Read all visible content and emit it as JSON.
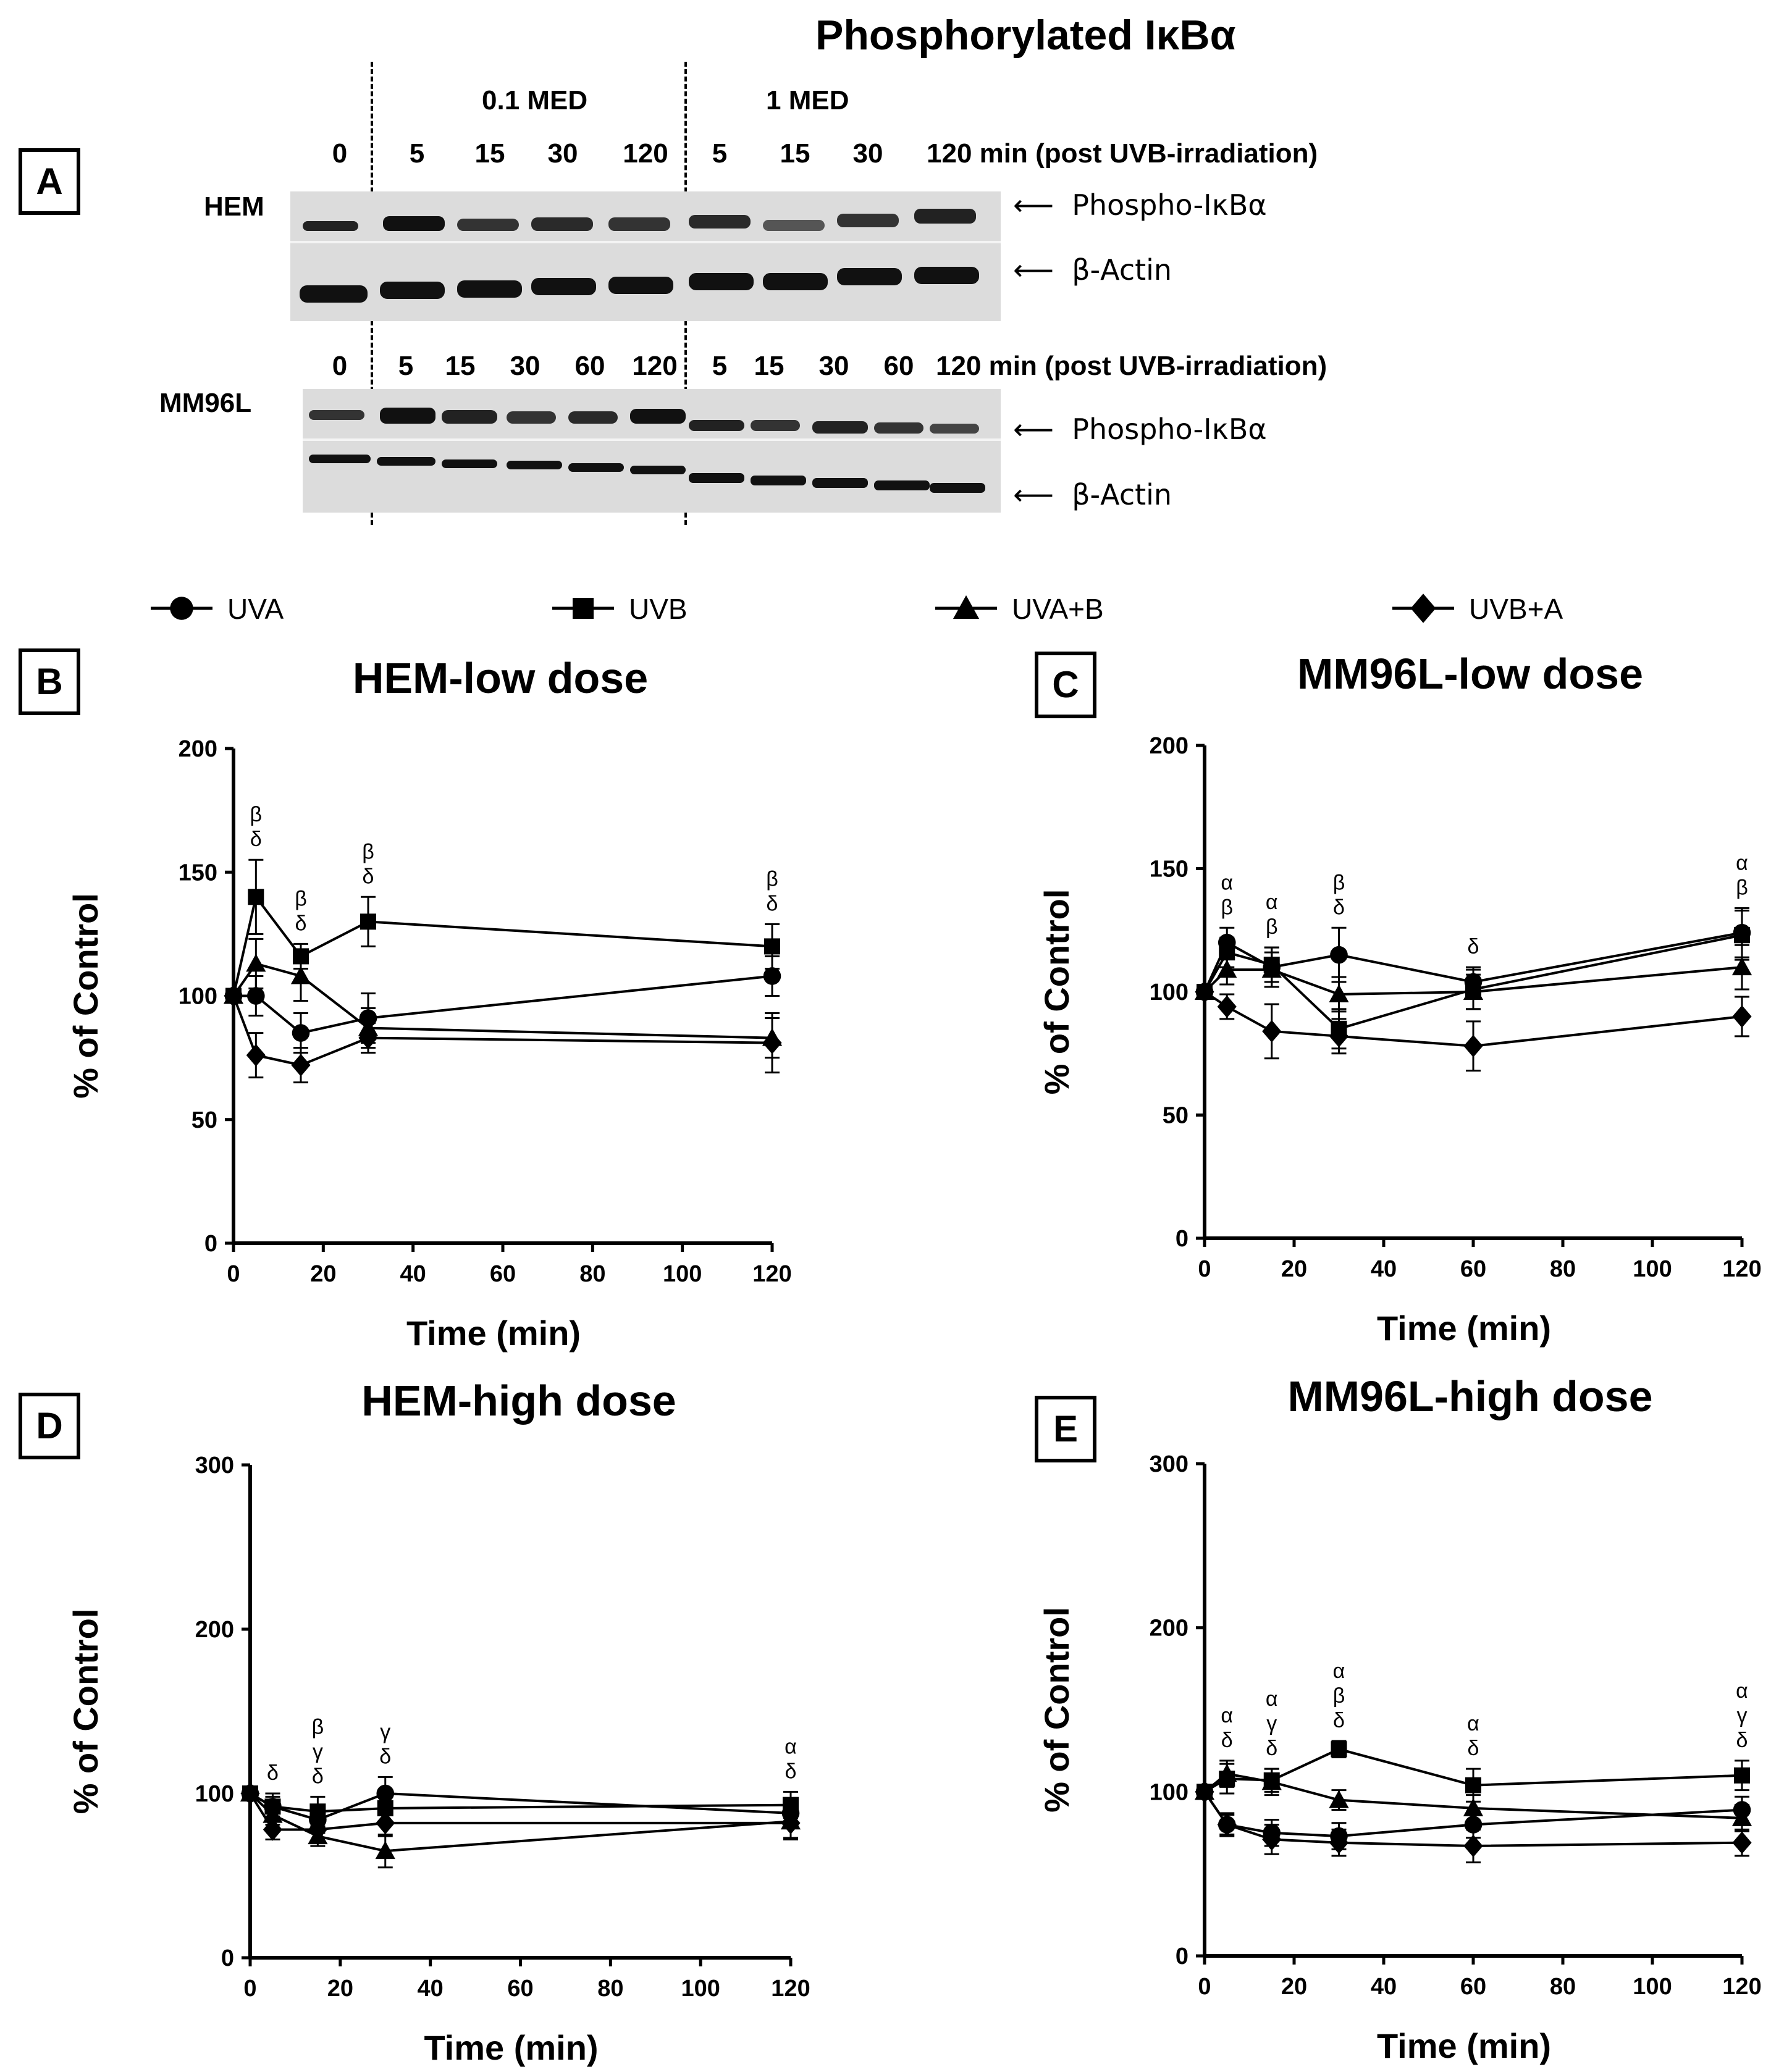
{
  "panel_a": {
    "letter": "A",
    "title": "Phosphorylated IκBα",
    "dose_low": "0.1 MED",
    "dose_high": "1 MED",
    "hem": {
      "cell_label": "HEM",
      "lanes": [
        "0",
        "5",
        "15",
        "30",
        "120",
        "5",
        "15",
        "30"
      ],
      "lanes_suffix": "120 min (post UVB-irradiation)"
    },
    "mm96l": {
      "cell_label": "MM96L",
      "lanes": [
        "0",
        "5",
        "15",
        "30",
        "60",
        "120",
        "5",
        "15",
        "30",
        "60"
      ],
      "lanes_suffix": "120 min (post UVB-irradiation)"
    },
    "band_phospho": "Phospho-IκBα",
    "band_actin": "β-Actin",
    "arrow": "⟵"
  },
  "legend": [
    {
      "name": "UVA",
      "marker": "circle"
    },
    {
      "name": "UVB",
      "marker": "square"
    },
    {
      "name": "UVA+B",
      "marker": "triangle"
    },
    {
      "name": "UVB+A",
      "marker": "diamond"
    }
  ],
  "chart_data": [
    {
      "id": "B",
      "type": "line",
      "title": "HEM-low dose",
      "xlabel": "Time (min)",
      "ylabel": "% of Control",
      "xlim": [
        0,
        120
      ],
      "ylim": [
        0,
        200
      ],
      "xticks": [
        0,
        20,
        40,
        60,
        80,
        100,
        120
      ],
      "yticks": [
        0,
        50,
        100,
        150,
        200
      ],
      "series": [
        {
          "name": "UVA",
          "x": [
            0,
            5,
            15,
            30,
            120
          ],
          "y": [
            100,
            100,
            85,
            91,
            108
          ],
          "err": [
            0,
            8,
            8,
            10,
            8
          ]
        },
        {
          "name": "UVB",
          "x": [
            0,
            5,
            15,
            30,
            120
          ],
          "y": [
            100,
            140,
            116,
            130,
            120
          ],
          "err": [
            0,
            15,
            5,
            10,
            9
          ]
        },
        {
          "name": "UVA+B",
          "x": [
            0,
            5,
            15,
            30,
            120
          ],
          "y": [
            100,
            113,
            108,
            87,
            83
          ],
          "err": [
            0,
            10,
            10,
            8,
            8
          ]
        },
        {
          "name": "UVB+A",
          "x": [
            0,
            5,
            15,
            30,
            120
          ],
          "y": [
            100,
            76,
            72,
            83,
            81
          ],
          "err": [
            0,
            9,
            7,
            6,
            12
          ]
        }
      ],
      "annotations": [
        {
          "x": 5,
          "lines": [
            "β",
            "δ"
          ]
        },
        {
          "x": 15,
          "lines": [
            "β",
            "δ"
          ]
        },
        {
          "x": 30,
          "lines": [
            "β",
            "δ"
          ]
        },
        {
          "x": 120,
          "lines": [
            "β",
            "δ"
          ]
        }
      ]
    },
    {
      "id": "C",
      "type": "line",
      "title": "MM96L-low dose",
      "xlabel": "Time (min)",
      "ylabel": "% of Control",
      "xlim": [
        0,
        120
      ],
      "ylim": [
        0,
        200
      ],
      "xticks": [
        0,
        20,
        40,
        60,
        80,
        100,
        120
      ],
      "yticks": [
        0,
        50,
        100,
        150,
        200
      ],
      "series": [
        {
          "name": "UVA",
          "x": [
            0,
            5,
            15,
            30,
            60,
            120
          ],
          "y": [
            100,
            120,
            110,
            115,
            104,
            124
          ],
          "err": [
            0,
            6,
            8,
            11,
            6,
            10
          ]
        },
        {
          "name": "UVB",
          "x": [
            0,
            5,
            15,
            30,
            60,
            120
          ],
          "y": [
            100,
            116,
            111,
            85,
            101,
            123
          ],
          "err": [
            0,
            6,
            7,
            8,
            8,
            10
          ]
        },
        {
          "name": "UVA+B",
          "x": [
            0,
            5,
            15,
            30,
            60,
            120
          ],
          "y": [
            100,
            109,
            109,
            99,
            100,
            110
          ],
          "err": [
            0,
            6,
            7,
            7,
            7,
            9
          ]
        },
        {
          "name": "UVB+A",
          "x": [
            0,
            5,
            15,
            30,
            60,
            120
          ],
          "y": [
            100,
            94,
            84,
            82,
            78,
            90
          ],
          "err": [
            0,
            5,
            11,
            7,
            10,
            8
          ]
        }
      ],
      "annotations": [
        {
          "x": 5,
          "lines": [
            "α",
            "β"
          ]
        },
        {
          "x": 15,
          "lines": [
            "α",
            "β"
          ]
        },
        {
          "x": 30,
          "lines": [
            "β",
            "δ"
          ]
        },
        {
          "x": 60,
          "lines": [
            "δ"
          ]
        },
        {
          "x": 120,
          "lines": [
            "α",
            "β"
          ]
        }
      ]
    },
    {
      "id": "D",
      "type": "line",
      "title": "HEM-high dose",
      "xlabel": "Time (min)",
      "ylabel": "% of Control",
      "xlim": [
        0,
        120
      ],
      "ylim": [
        0,
        300
      ],
      "xticks": [
        0,
        20,
        40,
        60,
        80,
        100,
        120
      ],
      "yticks": [
        0,
        100,
        200,
        300
      ],
      "series": [
        {
          "name": "UVA",
          "x": [
            0,
            5,
            15,
            30,
            120
          ],
          "y": [
            100,
            92,
            84,
            100,
            88
          ],
          "err": [
            0,
            8,
            8,
            10,
            8
          ]
        },
        {
          "name": "UVB",
          "x": [
            0,
            5,
            15,
            30,
            120
          ],
          "y": [
            100,
            92,
            89,
            91,
            93
          ],
          "err": [
            0,
            6,
            9,
            10,
            8
          ]
        },
        {
          "name": "UVA+B",
          "x": [
            0,
            5,
            15,
            30,
            120
          ],
          "y": [
            100,
            87,
            74,
            65,
            83
          ],
          "err": [
            0,
            6,
            6,
            10,
            10
          ]
        },
        {
          "name": "UVB+A",
          "x": [
            0,
            5,
            15,
            30,
            120
          ],
          "y": [
            100,
            78,
            78,
            82,
            82
          ],
          "err": [
            0,
            6,
            7,
            8,
            10
          ]
        }
      ],
      "annotations": [
        {
          "x": 5,
          "lines": [
            "δ"
          ]
        },
        {
          "x": 15,
          "lines": [
            "β",
            "γ",
            "δ"
          ]
        },
        {
          "x": 30,
          "lines": [
            "γ",
            "δ"
          ]
        },
        {
          "x": 120,
          "lines": [
            "α",
            "δ"
          ]
        }
      ]
    },
    {
      "id": "E",
      "type": "line",
      "title": "MM96L-high dose",
      "xlabel": "Time (min)",
      "ylabel": "% of Control",
      "xlim": [
        0,
        120
      ],
      "ylim": [
        0,
        300
      ],
      "xticks": [
        0,
        20,
        40,
        60,
        80,
        100,
        120
      ],
      "yticks": [
        0,
        100,
        200,
        300
      ],
      "series": [
        {
          "name": "UVA",
          "x": [
            0,
            5,
            15,
            30,
            60,
            120
          ],
          "y": [
            100,
            80,
            75,
            73,
            80,
            89
          ],
          "err": [
            0,
            6,
            8,
            8,
            8,
            8
          ]
        },
        {
          "name": "UVB",
          "x": [
            0,
            5,
            15,
            30,
            60,
            120
          ],
          "y": [
            100,
            108,
            107,
            126,
            104,
            110
          ],
          "err": [
            0,
            9,
            7,
            5,
            10,
            9
          ]
        },
        {
          "name": "UVA+B",
          "x": [
            0,
            5,
            15,
            30,
            60,
            120
          ],
          "y": [
            100,
            111,
            106,
            95,
            90,
            84
          ],
          "err": [
            0,
            8,
            8,
            6,
            8,
            8
          ]
        },
        {
          "name": "UVB+A",
          "x": [
            0,
            5,
            15,
            30,
            60,
            120
          ],
          "y": [
            100,
            80,
            71,
            69,
            67,
            69
          ],
          "err": [
            0,
            7,
            9,
            8,
            10,
            8
          ]
        }
      ],
      "annotations": [
        {
          "x": 5,
          "lines": [
            "α",
            "δ"
          ]
        },
        {
          "x": 15,
          "lines": [
            "α",
            "γ",
            "δ"
          ]
        },
        {
          "x": 30,
          "lines": [
            "α",
            "β",
            "δ"
          ]
        },
        {
          "x": 60,
          "lines": [
            "α",
            "δ"
          ]
        },
        {
          "x": 120,
          "lines": [
            "α",
            "γ",
            "δ"
          ]
        }
      ]
    }
  ]
}
